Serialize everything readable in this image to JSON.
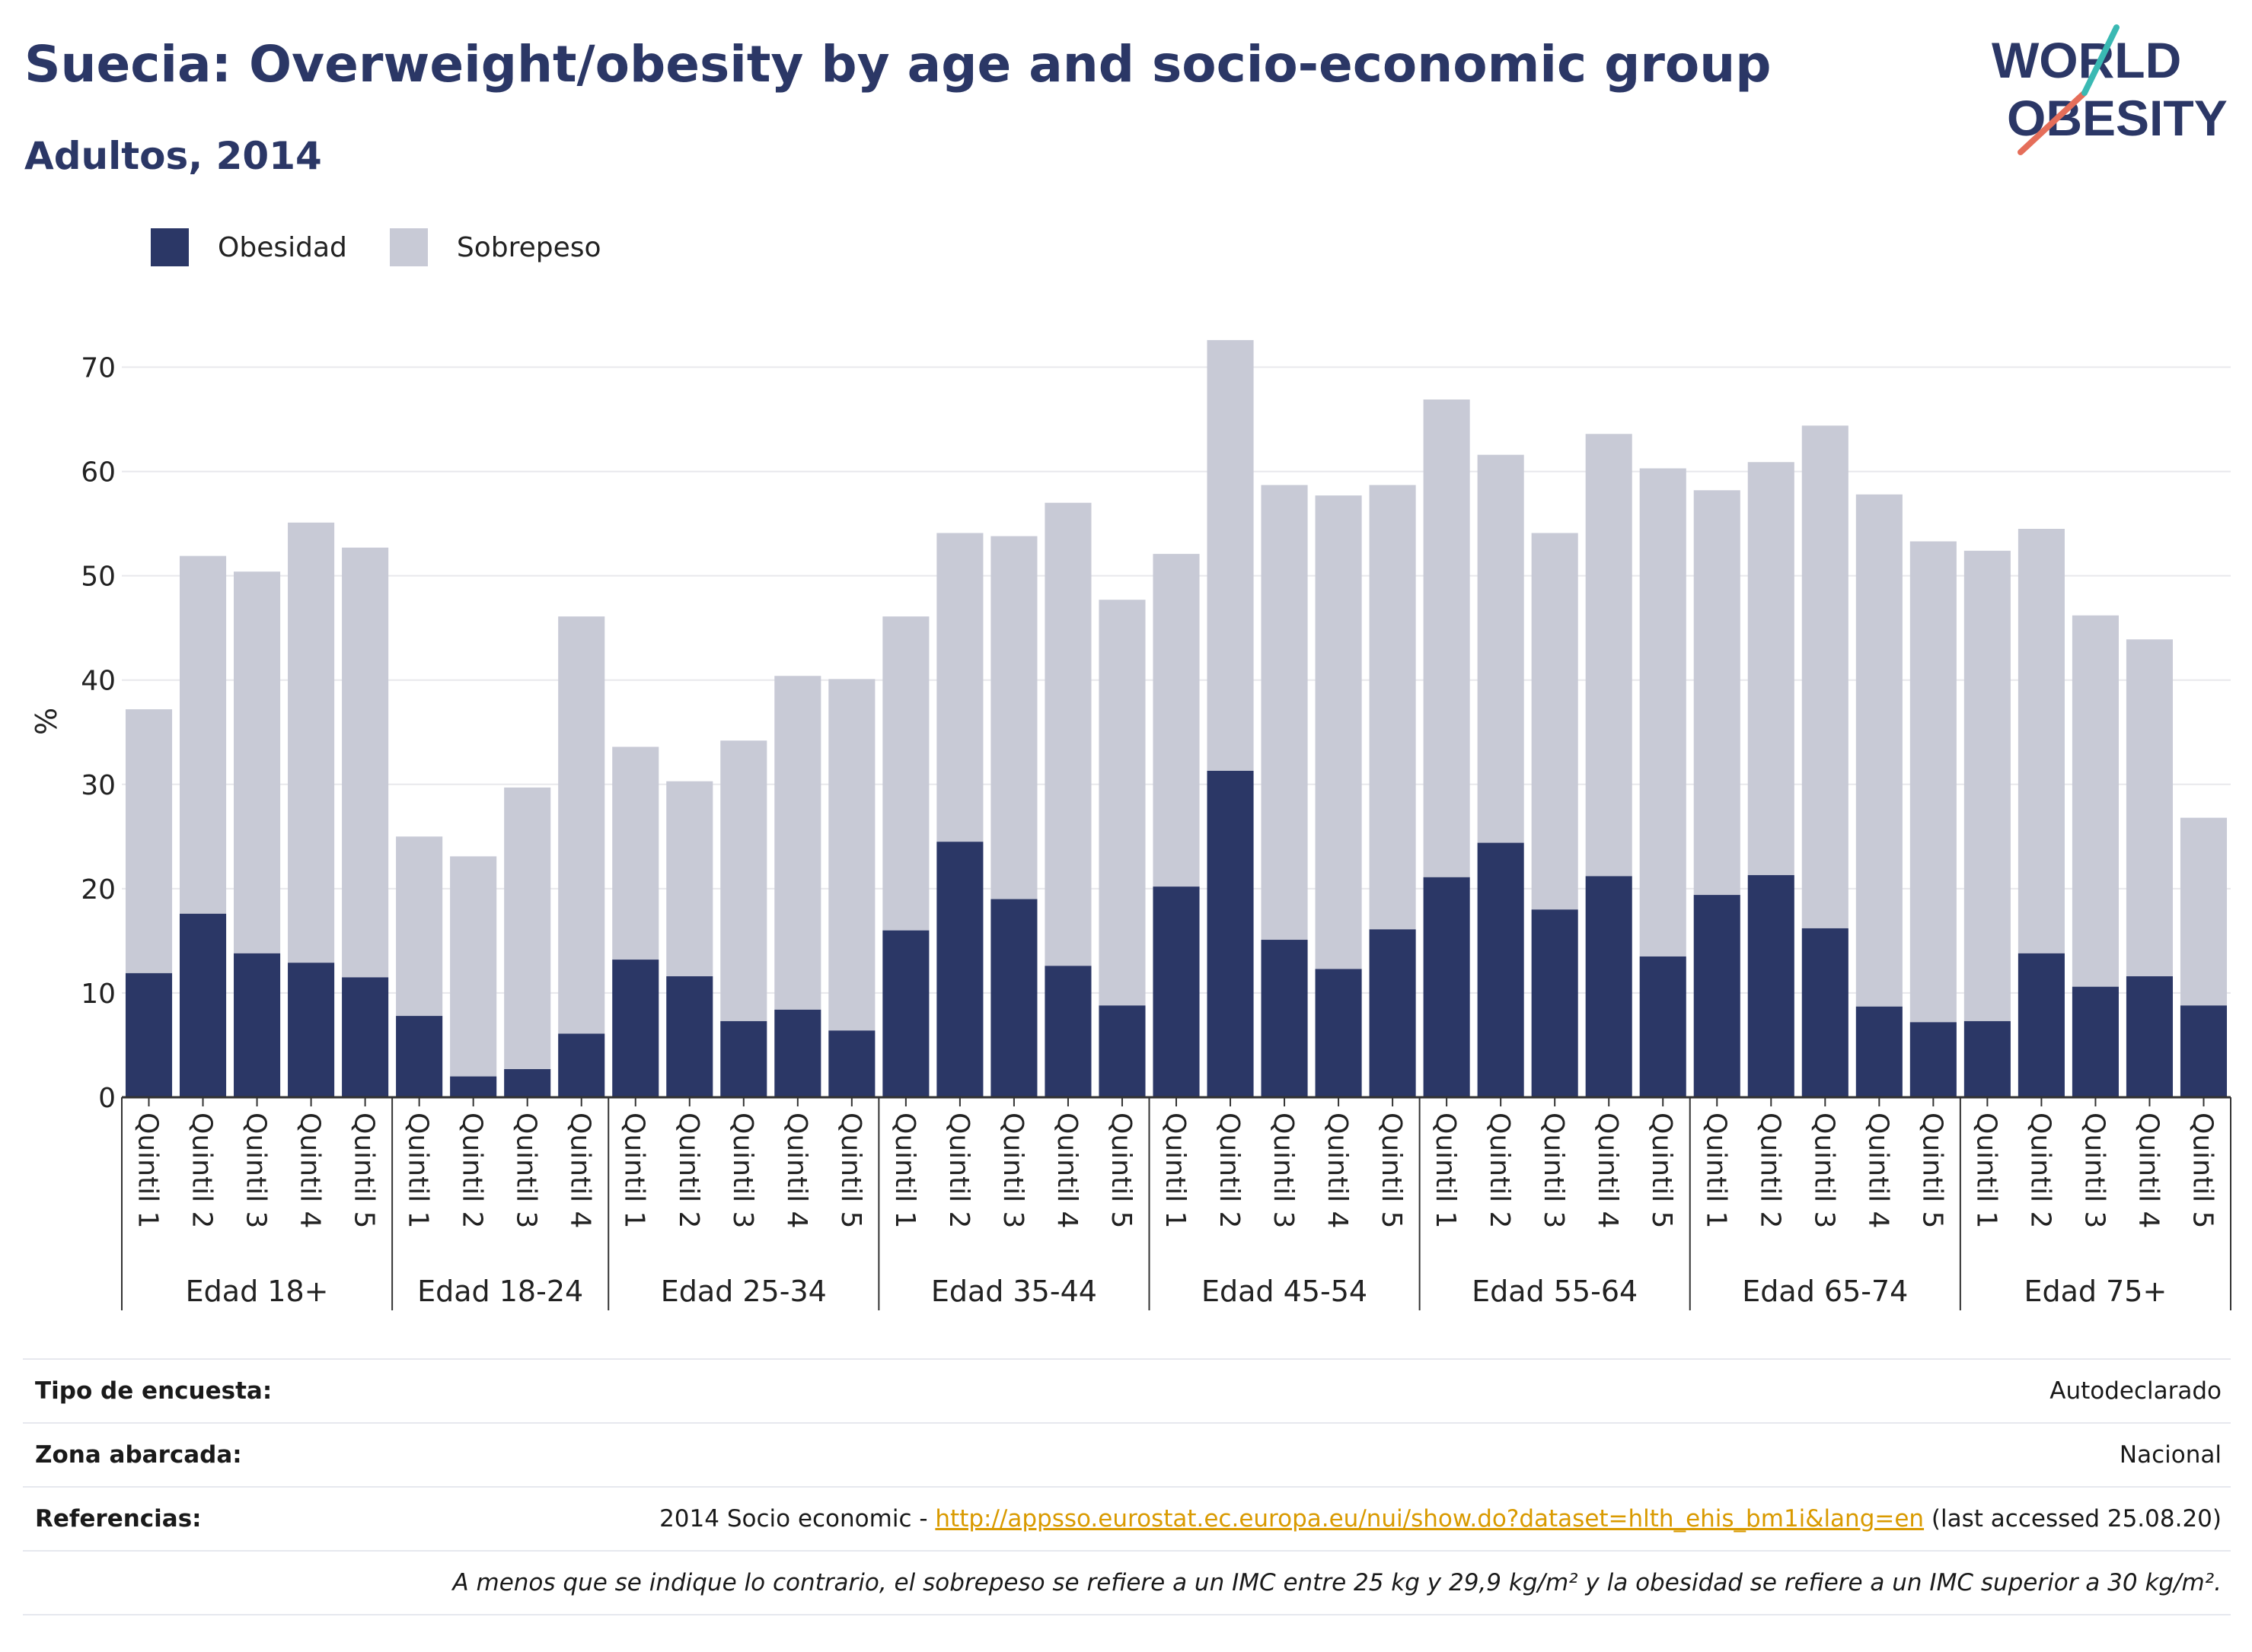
{
  "header": {
    "title": "Suecia: Overweight/obesity by age and socio-economic group",
    "subtitle": "Adultos, 2014"
  },
  "logo": {
    "line1": "WORLD",
    "line2": "OBESITY"
  },
  "colors": {
    "obesity": "#2b3766",
    "overweight": "#c8cad6",
    "grid": "#e8e8ec",
    "axis": "#333333",
    "logo_teal": "#3ab9b3",
    "logo_coral": "#e56e5a",
    "link": "#d99a00"
  },
  "legend": [
    {
      "label": "Obesidad",
      "color_key": "obesity"
    },
    {
      "label": "Sobrepeso",
      "color_key": "overweight"
    }
  ],
  "chart_data": {
    "type": "bar",
    "stacked": true,
    "ylabel": "%",
    "ylim": [
      0,
      75
    ],
    "yticks": [
      0,
      10,
      20,
      30,
      40,
      50,
      60,
      70
    ],
    "grid": true,
    "legend_position": "top-left",
    "groups": [
      {
        "label": "Edad 18+",
        "categories": [
          "Quintil 1",
          "Quintil 2",
          "Quintil 3",
          "Quintil 4",
          "Quintil 5"
        ],
        "obesidad": [
          11.9,
          17.6,
          13.8,
          12.9,
          11.5
        ],
        "total": [
          37.2,
          51.9,
          50.4,
          55.1,
          52.7
        ]
      },
      {
        "label": "Edad 18-24",
        "categories": [
          "Quintil 1",
          "Quintil 2",
          "Quintil 3",
          "Quintil 4"
        ],
        "obesidad": [
          7.8,
          2.0,
          2.7,
          6.1
        ],
        "total": [
          25.0,
          23.1,
          29.7,
          46.1
        ]
      },
      {
        "label": "Edad 25-34",
        "categories": [
          "Quintil 1",
          "Quintil 2",
          "Quintil 3",
          "Quintil 4",
          "Quintil 5"
        ],
        "obesidad": [
          13.2,
          11.6,
          7.3,
          8.4,
          6.4
        ],
        "total": [
          33.6,
          30.3,
          34.2,
          40.4,
          40.1
        ]
      },
      {
        "label": "Edad 35-44",
        "categories": [
          "Quintil 1",
          "Quintil 2",
          "Quintil 3",
          "Quintil 4",
          "Quintil 5"
        ],
        "obesidad": [
          16.0,
          24.5,
          19.0,
          12.6,
          8.8
        ],
        "total": [
          46.1,
          54.1,
          53.8,
          57.0,
          47.7
        ]
      },
      {
        "label": "Edad 45-54",
        "categories": [
          "Quintil 1",
          "Quintil 2",
          "Quintil 3",
          "Quintil 4",
          "Quintil 5"
        ],
        "obesidad": [
          20.2,
          31.3,
          15.1,
          12.3,
          16.1
        ],
        "total": [
          52.1,
          72.6,
          58.7,
          57.7,
          58.7
        ]
      },
      {
        "label": "Edad 55-64",
        "categories": [
          "Quintil 1",
          "Quintil 2",
          "Quintil 3",
          "Quintil 4",
          "Quintil 5"
        ],
        "obesidad": [
          21.1,
          24.4,
          18.0,
          21.2,
          13.5
        ],
        "total": [
          66.9,
          61.6,
          54.1,
          63.6,
          60.3
        ]
      },
      {
        "label": "Edad 65-74",
        "categories": [
          "Quintil 1",
          "Quintil 2",
          "Quintil 3",
          "Quintil 4",
          "Quintil 5"
        ],
        "obesidad": [
          19.4,
          21.3,
          16.2,
          8.7,
          7.2
        ],
        "total": [
          58.2,
          60.9,
          64.4,
          57.8,
          53.3
        ]
      },
      {
        "label": "Edad 75+",
        "categories": [
          "Quintil 1",
          "Quintil 2",
          "Quintil 3",
          "Quintil 4",
          "Quintil 5"
        ],
        "obesidad": [
          7.3,
          13.8,
          10.6,
          11.6,
          8.8
        ],
        "total": [
          52.4,
          54.5,
          46.2,
          43.9,
          26.8
        ]
      }
    ]
  },
  "info": {
    "survey_type": {
      "label": "Tipo de encuesta:",
      "value": "Autodeclarado"
    },
    "area": {
      "label": "Zona abarcada:",
      "value": "Nacional"
    },
    "references": {
      "label": "Referencias:",
      "prefix": "2014 Socio economic - ",
      "link": "http://appsso.eurostat.ec.europa.eu/nui/show.do?dataset=hlth_ehis_bm1i&lang=en",
      "suffix": " (last accessed 25.08.20)"
    },
    "note": "A menos que se indique lo contrario, el sobrepeso se refiere a un IMC entre 25 kg y 29,9 kg/m² y la obesidad se refiere a un IMC superior a 30 kg/m²."
  }
}
